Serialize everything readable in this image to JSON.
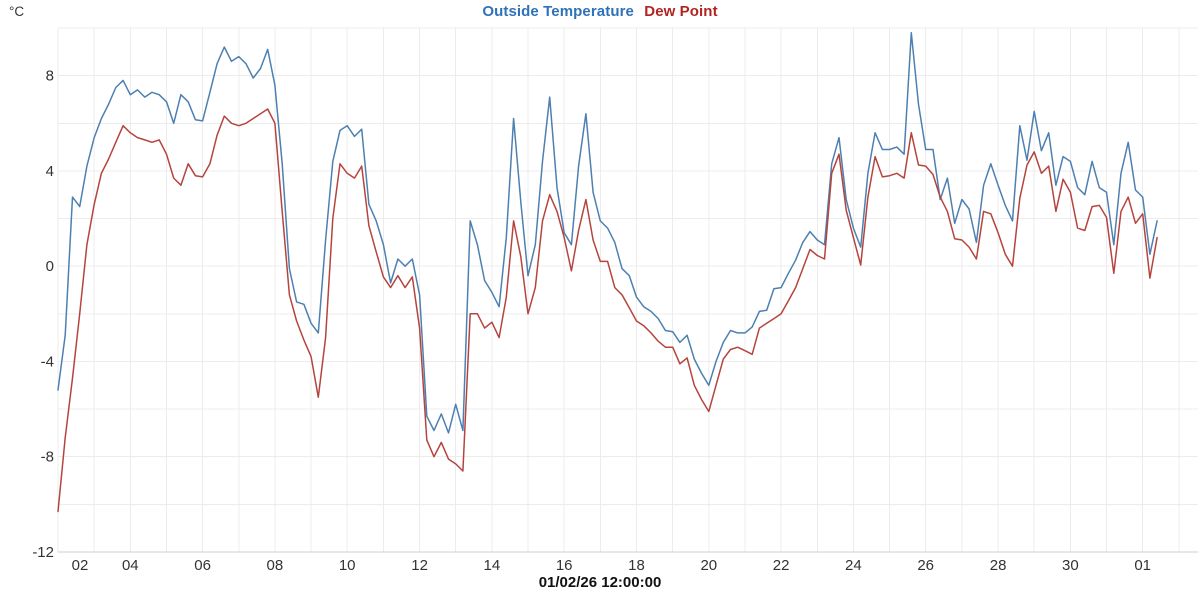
{
  "legend": {
    "items": [
      {
        "label": "Outside Temperature",
        "color": "#2f72b8"
      },
      {
        "label": "Dew Point",
        "color": "#b22422"
      }
    ]
  },
  "axes": {
    "y_unit": "°C",
    "x_caption": "01/02/26 12:00:00"
  },
  "colors": {
    "background": "#ffffff",
    "grid": "#ececec",
    "axis_line": "#cfcfcf",
    "tick_text": "#333333",
    "caption_text": "#111111"
  },
  "chart_data": {
    "type": "line",
    "title": "Outside Temperature / Dew Point",
    "xlabel": "01/02/26 12:00:00",
    "ylabel": "°C",
    "legend_position": "top-center",
    "grid": {
      "x_interval_days": 1,
      "y_interval_degC": 2
    },
    "xlim": [
      2,
      33.53
    ],
    "ylim": [
      -12,
      10
    ],
    "x_start": 2.0,
    "x_step": 0.2,
    "x_unit": "day of month (x ticks labeled every 2 days)",
    "xticks": [
      {
        "day": 2,
        "label": "02"
      },
      {
        "day": 4,
        "label": "04"
      },
      {
        "day": 6,
        "label": "06"
      },
      {
        "day": 8,
        "label": "08"
      },
      {
        "day": 10,
        "label": "10"
      },
      {
        "day": 12,
        "label": "12"
      },
      {
        "day": 14,
        "label": "14"
      },
      {
        "day": 16,
        "label": "16"
      },
      {
        "day": 18,
        "label": "18"
      },
      {
        "day": 20,
        "label": "20"
      },
      {
        "day": 22,
        "label": "22"
      },
      {
        "day": 24,
        "label": "24"
      },
      {
        "day": 26,
        "label": "26"
      },
      {
        "day": 28,
        "label": "28"
      },
      {
        "day": 30,
        "label": "30"
      },
      {
        "day": 32,
        "label": "01"
      }
    ],
    "yticks": [
      {
        "value": -12,
        "label": "-12"
      },
      {
        "value": -8,
        "label": "-8"
      },
      {
        "value": -4,
        "label": "-4"
      },
      {
        "value": 0,
        "label": "0"
      },
      {
        "value": 4,
        "label": "4"
      },
      {
        "value": 8,
        "label": "8"
      }
    ],
    "series": [
      {
        "name": "Outside Temperature",
        "color": "#4d80b0",
        "values": [
          -5.2,
          -2.9,
          2.9,
          2.5,
          4.2,
          5.4,
          6.2,
          6.8,
          7.5,
          7.8,
          7.2,
          7.4,
          7.1,
          7.3,
          7.2,
          6.9,
          6.0,
          7.2,
          6.9,
          6.15,
          6.1,
          7.3,
          8.5,
          9.2,
          8.6,
          8.8,
          8.5,
          7.9,
          8.3,
          9.1,
          7.6,
          4.3,
          -0.1,
          -1.5,
          -1.6,
          -2.4,
          -2.8,
          1.1,
          4.4,
          5.7,
          5.9,
          5.45,
          5.75,
          2.6,
          1.9,
          0.9,
          -0.7,
          0.3,
          0.0,
          0.3,
          -1.2,
          -6.3,
          -6.9,
          -6.2,
          -7.0,
          -5.8,
          -6.9,
          1.9,
          0.9,
          -0.6,
          -1.1,
          -1.7,
          1.2,
          6.2,
          2.7,
          -0.4,
          0.9,
          4.4,
          7.1,
          3.3,
          1.4,
          0.9,
          4.2,
          6.4,
          3.1,
          1.9,
          1.6,
          1.0,
          -0.1,
          -0.4,
          -1.3,
          -1.7,
          -1.9,
          -2.2,
          -2.7,
          -2.75,
          -3.2,
          -2.9,
          -3.9,
          -4.5,
          -5.0,
          -4.0,
          -3.2,
          -2.7,
          -2.8,
          -2.8,
          -2.55,
          -1.9,
          -1.85,
          -0.95,
          -0.9,
          -0.3,
          0.25,
          1.0,
          1.45,
          1.1,
          0.9,
          4.3,
          5.4,
          2.8,
          1.6,
          0.8,
          3.9,
          5.6,
          4.9,
          4.9,
          5.0,
          4.7,
          9.8,
          6.8,
          4.9,
          4.9,
          2.8,
          3.7,
          1.8,
          2.8,
          2.4,
          1.0,
          3.4,
          4.3,
          3.4,
          2.55,
          1.9,
          5.9,
          4.45,
          6.5,
          4.85,
          5.6,
          3.4,
          4.6,
          4.4,
          3.3,
          3.0,
          4.4,
          3.3,
          3.1,
          0.9,
          3.9,
          5.2,
          3.2,
          2.9,
          0.5,
          1.9
        ]
      },
      {
        "name": "Dew Point",
        "color": "#b5443e",
        "values": [
          -10.3,
          -7.2,
          -4.7,
          -2.0,
          0.9,
          2.6,
          3.9,
          4.5,
          5.2,
          5.9,
          5.6,
          5.4,
          5.3,
          5.2,
          5.3,
          4.7,
          3.7,
          3.4,
          4.3,
          3.8,
          3.75,
          4.3,
          5.5,
          6.3,
          6.0,
          5.9,
          6.0,
          6.2,
          6.4,
          6.6,
          6.0,
          2.3,
          -1.2,
          -2.3,
          -3.1,
          -3.8,
          -5.5,
          -3.0,
          2.0,
          4.3,
          3.9,
          3.7,
          4.2,
          1.7,
          0.6,
          -0.45,
          -0.9,
          -0.4,
          -0.9,
          -0.45,
          -2.6,
          -7.3,
          -8.0,
          -7.4,
          -8.1,
          -8.3,
          -8.6,
          -2.0,
          -2.0,
          -2.6,
          -2.35,
          -3.0,
          -1.3,
          1.9,
          0.4,
          -2.0,
          -0.9,
          1.9,
          3.0,
          2.3,
          1.2,
          -0.2,
          1.5,
          2.8,
          1.1,
          0.2,
          0.2,
          -0.9,
          -1.2,
          -1.75,
          -2.3,
          -2.5,
          -2.8,
          -3.15,
          -3.4,
          -3.4,
          -4.1,
          -3.85,
          -5.0,
          -5.6,
          -6.1,
          -5.0,
          -3.9,
          -3.5,
          -3.4,
          -3.55,
          -3.7,
          -2.6,
          -2.4,
          -2.2,
          -2.0,
          -1.45,
          -0.9,
          -0.1,
          0.7,
          0.45,
          0.3,
          3.9,
          4.7,
          2.35,
          1.2,
          0.05,
          2.9,
          4.6,
          3.75,
          3.8,
          3.9,
          3.7,
          5.6,
          4.25,
          4.2,
          3.85,
          2.9,
          2.3,
          1.15,
          1.1,
          0.8,
          0.3,
          2.3,
          2.2,
          1.4,
          0.5,
          0.0,
          2.85,
          4.25,
          4.8,
          3.9,
          4.2,
          2.3,
          3.65,
          3.1,
          1.6,
          1.5,
          2.5,
          2.55,
          2.05,
          -0.3,
          2.3,
          2.9,
          1.8,
          2.2,
          -0.5,
          1.2
        ]
      }
    ]
  }
}
